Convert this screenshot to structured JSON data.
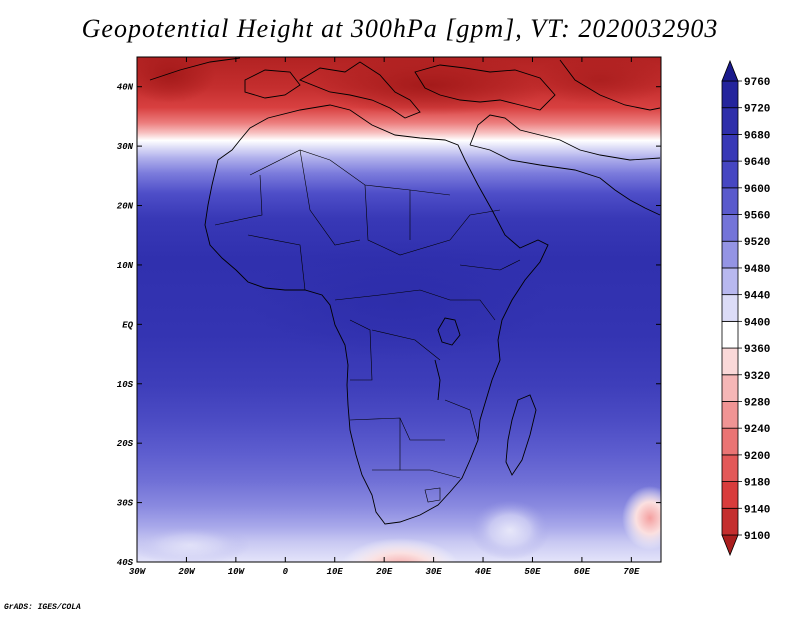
{
  "title": "Geopotential Height at 300hPa [gpm], VT: 2020032903",
  "footer": "GrADS: IGES/COLA",
  "map": {
    "region": "Africa",
    "variable": "Geopotential Height",
    "level": "300hPa",
    "units": "gpm",
    "valid_time": "2020032903",
    "lon_range": [
      -30,
      76
    ],
    "lat_range": [
      -40,
      45
    ],
    "lon_ticks": [
      "30W",
      "20W",
      "10W",
      "0",
      "10E",
      "20E",
      "30E",
      "40E",
      "50E",
      "60E",
      "70E"
    ],
    "lat_ticks": [
      "40S",
      "30S",
      "20S",
      "10S",
      "EQ",
      "10N",
      "20N",
      "30N",
      "40N"
    ]
  },
  "colorbar": {
    "levels": [
      "9100",
      "9140",
      "9180",
      "9200",
      "9240",
      "9280",
      "9320",
      "9360",
      "9400",
      "9440",
      "9480",
      "9520",
      "9560",
      "9600",
      "9640",
      "9680",
      "9720",
      "9760"
    ],
    "colors": [
      "#aa1e1e",
      "#c42e2e",
      "#d83c3c",
      "#e35858",
      "#ea7474",
      "#f09494",
      "#f5b6b6",
      "#fad8d8",
      "#ffffff",
      "#dcdcf7",
      "#b8b8ef",
      "#9494e4",
      "#7474d8",
      "#5a5acc",
      "#4646c2",
      "#3838b6",
      "#2e2eaa",
      "#24249c",
      "#1a1a8c"
    ]
  }
}
